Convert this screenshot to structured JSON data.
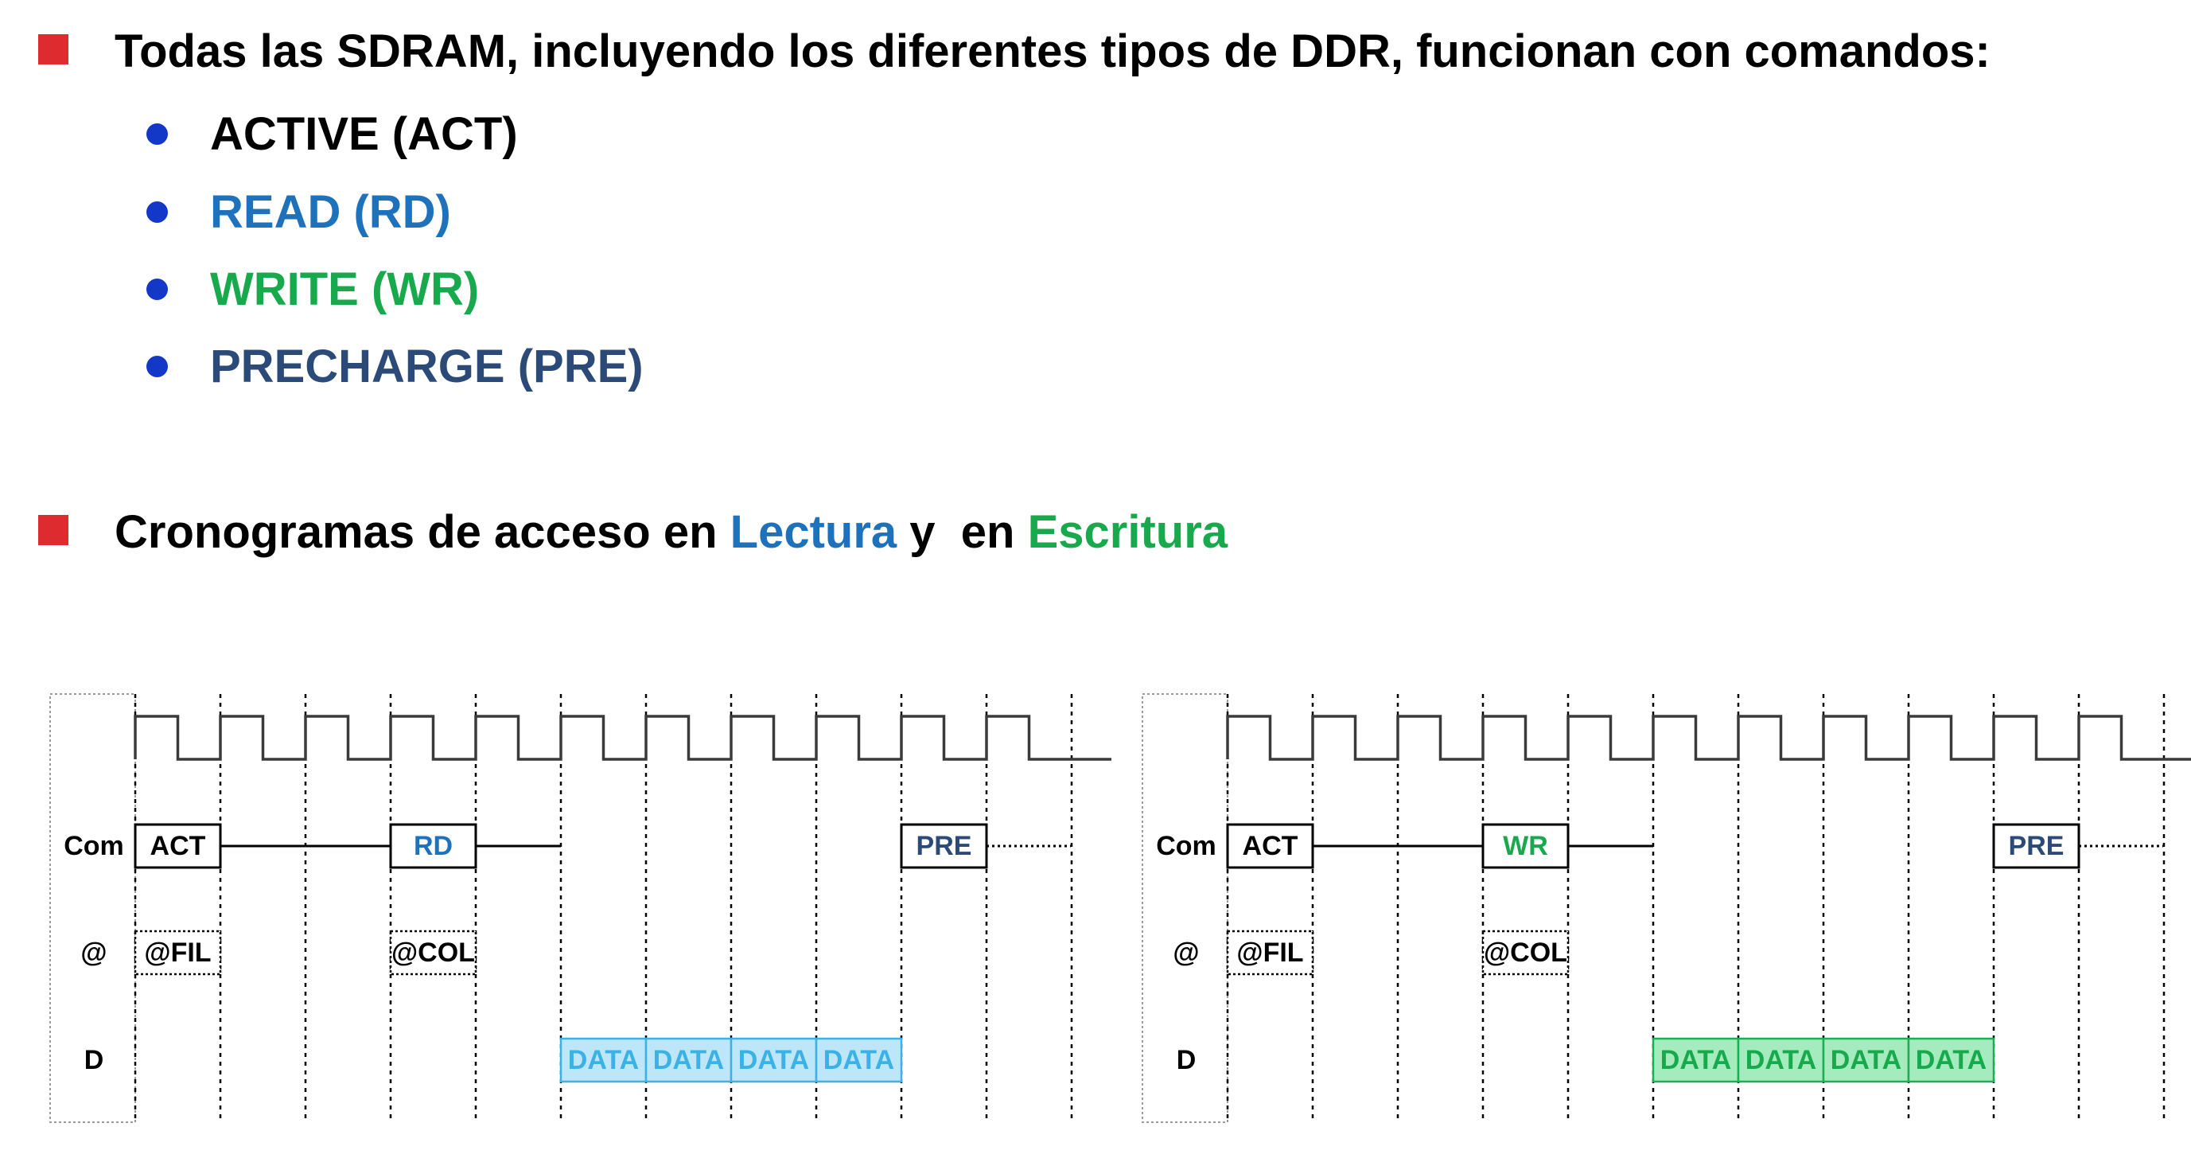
{
  "heading1": "Todas las SDRAM, incluyendo los diferentes tipos de DDR, funcionan con comandos:",
  "commands": [
    {
      "label": "ACTIVE (ACT)",
      "color": "#000000"
    },
    {
      "label": "READ (RD)",
      "color": "#1d72bb"
    },
    {
      "label": "WRITE (WR)",
      "color": "#17a94c"
    },
    {
      "label": "PRECHARGE (PRE)",
      "color": "#2b4a78"
    }
  ],
  "heading2": {
    "prefix": "Cronogramas de acceso en ",
    "lectura": "Lectura",
    "middle": " y  en ",
    "escritura": "Escritura",
    "lectura_color": "#1d72bb",
    "escritura_color": "#17a94c"
  },
  "timing": {
    "row_labels": {
      "com": "Com",
      "addr": "@",
      "data": "D"
    },
    "diagrams": [
      {
        "id": "read",
        "commands": [
          {
            "label": "ACT",
            "cycle": 0,
            "color": "#000000"
          },
          {
            "label": "RD",
            "cycle": 3,
            "color": "#1d72bb"
          },
          {
            "label": "PRE",
            "cycle": 9,
            "color": "#2b4a78"
          }
        ],
        "addresses": [
          {
            "label": "@FIL",
            "cycle": 0
          },
          {
            "label": "@COL",
            "cycle": 3
          }
        ],
        "data": {
          "label": "DATA",
          "start": 5,
          "count": 4,
          "fill": "#bde6f9",
          "stroke": "#3bb1e6",
          "text_color": "#3bb1e6"
        }
      },
      {
        "id": "write",
        "commands": [
          {
            "label": "ACT",
            "cycle": 0,
            "color": "#000000"
          },
          {
            "label": "WR",
            "cycle": 3,
            "color": "#17a94c"
          },
          {
            "label": "PRE",
            "cycle": 9,
            "color": "#2b4a78"
          }
        ],
        "addresses": [
          {
            "label": "@FIL",
            "cycle": 0
          },
          {
            "label": "@COL",
            "cycle": 3
          }
        ],
        "data": {
          "label": "DATA",
          "start": 5,
          "count": 4,
          "fill": "#a4ecbe",
          "stroke": "#1cae54",
          "text_color": "#17a94c"
        }
      }
    ]
  }
}
